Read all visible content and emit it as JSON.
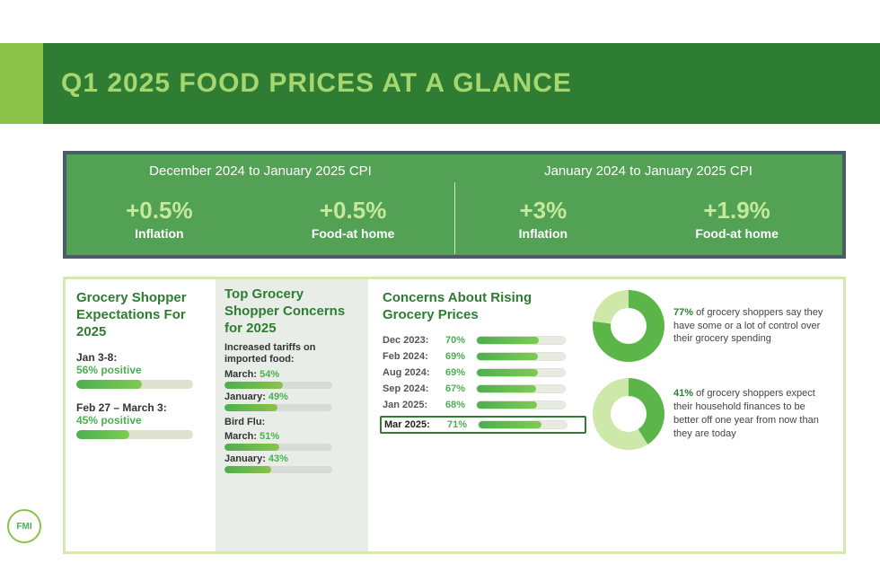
{
  "colors": {
    "header_bg": "#2e7d32",
    "header_accent": "#8bc34a",
    "header_text": "#a5d66f",
    "cpi_bg": "#53a155",
    "cpi_border": "#4a5b6a",
    "cpi_value": "#c5e89a",
    "section_title": "#2e7d32",
    "bar_fill_start": "#4caf50",
    "bar_fill_end": "#7fcb52",
    "bar_track": "#e0e0d0",
    "donut_dark": "#5bb548",
    "donut_light": "#cde8a8",
    "main_border": "#d4e8b0",
    "col2_bg": "#e8ede8"
  },
  "header": {
    "title": "Q1 2025 FOOD PRICES AT A GLANCE"
  },
  "cpi": {
    "left": {
      "period": "December 2024 to January 2025 CPI",
      "metrics": [
        {
          "value": "+0.5%",
          "label": "Inflation"
        },
        {
          "value": "+0.5%",
          "label": "Food-at home"
        }
      ]
    },
    "right": {
      "period": "January 2024 to January 2025 CPI",
      "metrics": [
        {
          "value": "+3%",
          "label": "Inflation"
        },
        {
          "value": "+1.9%",
          "label": "Food-at home"
        }
      ]
    }
  },
  "expectations": {
    "title": "Grocery Shopper Expectations For 2025",
    "items": [
      {
        "label": "Jan 3-8:",
        "value_text": "56% positive",
        "pct": 56
      },
      {
        "label": "Feb 27 – March 3:",
        "value_text": "45% positive",
        "pct": 45
      }
    ]
  },
  "concerns2025": {
    "title": "Top Grocery Shopper Concerns for 2025",
    "groups": [
      {
        "heading": "Increased tariffs on imported food:",
        "rows": [
          {
            "month": "March:",
            "pct_text": "54%",
            "pct": 54
          },
          {
            "month": "January:",
            "pct_text": "49%",
            "pct": 49
          }
        ]
      },
      {
        "heading": "Bird Flu:",
        "rows": [
          {
            "month": "March:",
            "pct_text": "51%",
            "pct": 51
          },
          {
            "month": "January:",
            "pct_text": "43%",
            "pct": 43
          }
        ]
      }
    ]
  },
  "rising": {
    "title": "Concerns About Rising Grocery Prices",
    "rows": [
      {
        "label": "Dec 2023:",
        "pct_text": "70%",
        "pct": 70,
        "highlight": false
      },
      {
        "label": "Feb 2024:",
        "pct_text": "69%",
        "pct": 69,
        "highlight": false
      },
      {
        "label": "Aug 2024:",
        "pct_text": "69%",
        "pct": 69,
        "highlight": false
      },
      {
        "label": "Sep 2024:",
        "pct_text": "67%",
        "pct": 67,
        "highlight": false
      },
      {
        "label": "Jan 2025:",
        "pct_text": "68%",
        "pct": 68,
        "highlight": false
      },
      {
        "label": "Mar 2025:",
        "pct_text": "71%",
        "pct": 71,
        "highlight": true
      }
    ]
  },
  "donuts": [
    {
      "pct": 77,
      "bold": "77%",
      "text": " of grocery shoppers say they have some or a lot of control over their grocery spending"
    },
    {
      "pct": 41,
      "bold": "41%",
      "text": " of grocery shoppers expect their household finances to be better off one year from now than they are today"
    }
  ],
  "logo": "FMI"
}
